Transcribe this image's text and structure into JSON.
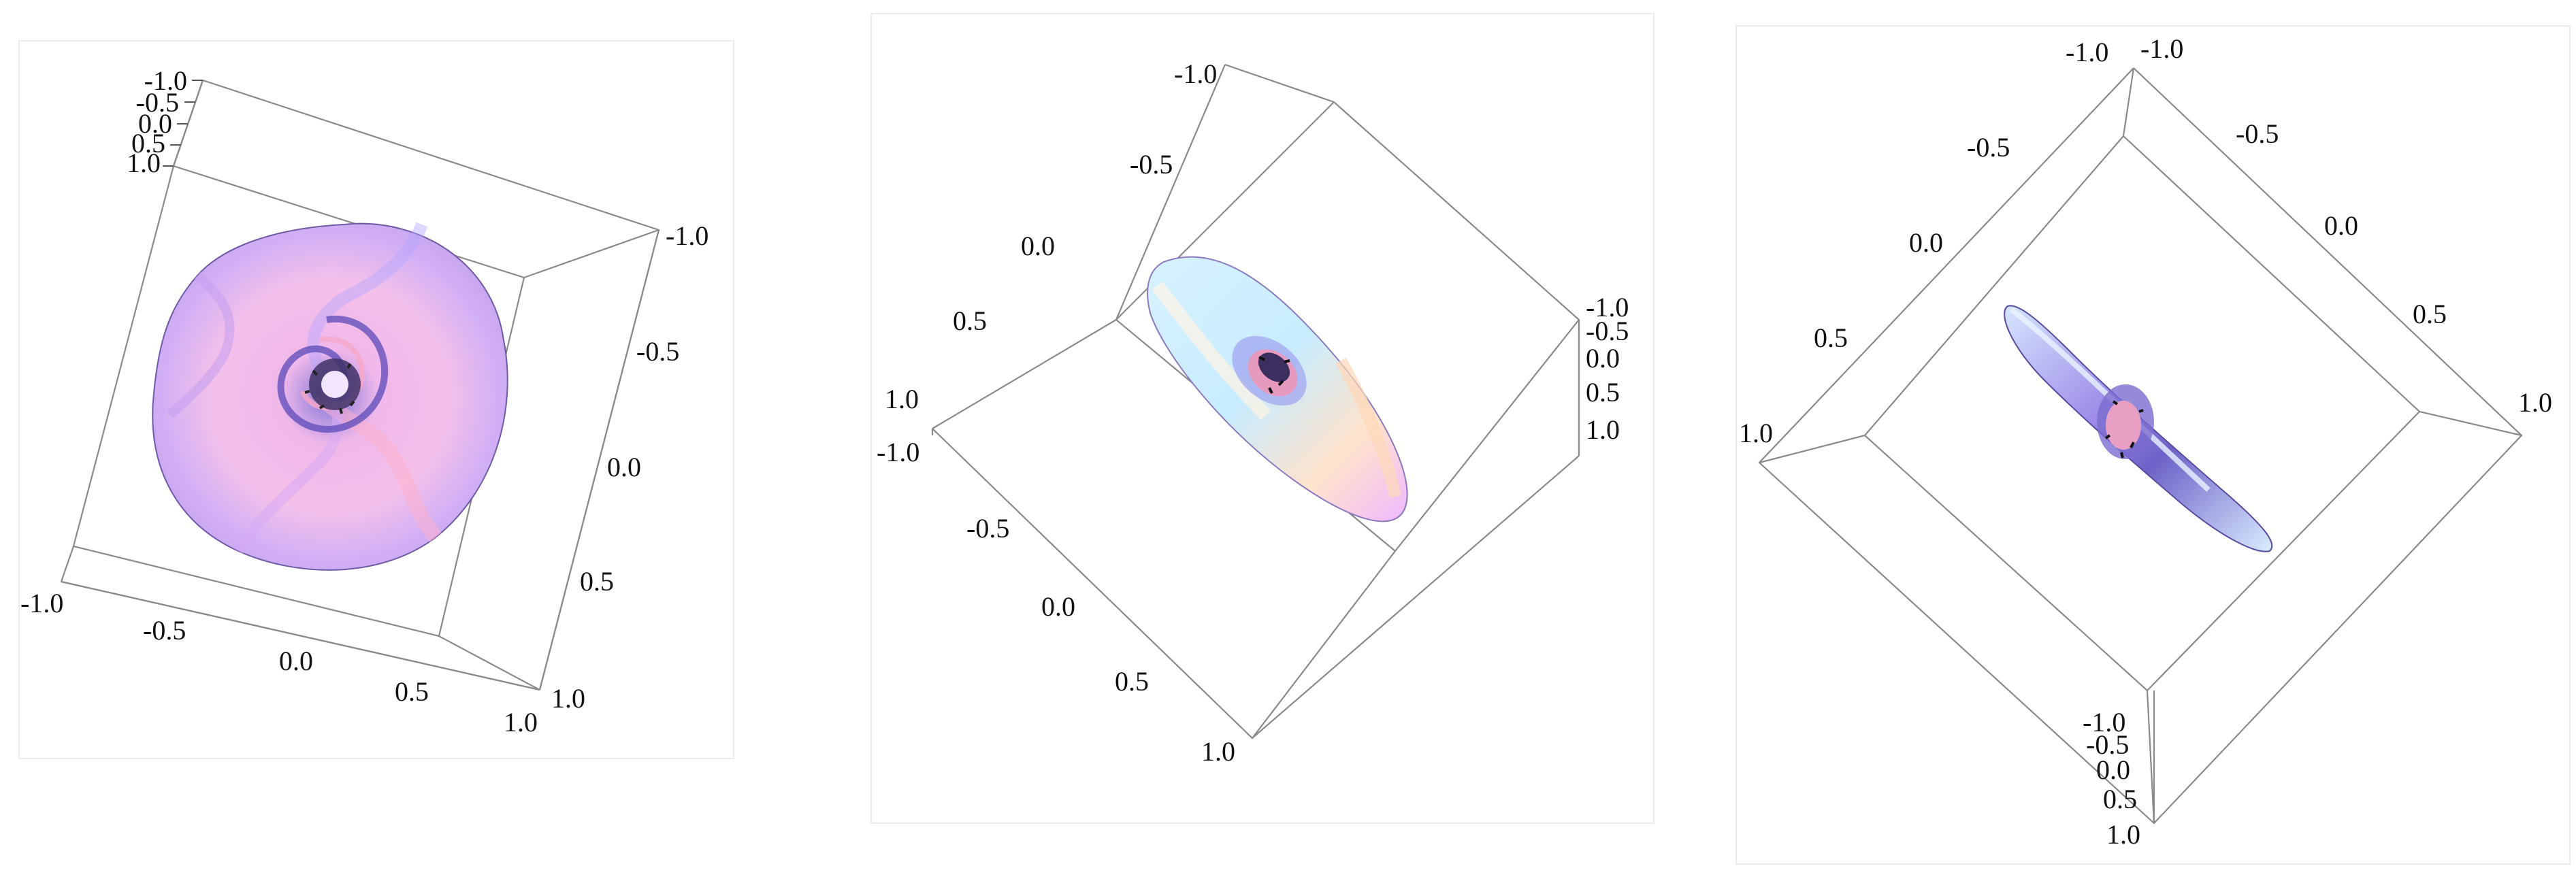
{
  "panels": [
    {
      "id": "top-view",
      "axes": [
        {
          "ticks": [
            "-1.0",
            "-0.5",
            "0.0",
            "0.5",
            "1.0"
          ]
        },
        {
          "ticks": [
            "-1.0",
            "-0.5",
            "0.0",
            "0.5",
            "1.0"
          ]
        },
        {
          "ticks": [
            "-1.0",
            "-0.5",
            "0.0",
            "0.5",
            "1.0"
          ]
        }
      ],
      "surface_colors": [
        "#f7c3e6",
        "#e9b1f2",
        "#c9b6ff",
        "#ffb3cf"
      ]
    },
    {
      "id": "oblique-view",
      "axes": [
        {
          "ticks": [
            "-1.0",
            "-0.5",
            "0.0",
            "0.5",
            "1.0"
          ]
        },
        {
          "ticks": [
            "-1.0",
            "-0.5",
            "0.0",
            "0.5",
            "1.0"
          ]
        },
        {
          "ticks": [
            "-1.0",
            "-0.5",
            "0.0",
            "0.5",
            "1.0"
          ]
        }
      ],
      "surface_colors": [
        "#d9f3ff",
        "#bfe8ff",
        "#ffe6cc",
        "#f3b6ff"
      ]
    },
    {
      "id": "edge-view",
      "axes": [
        {
          "ticks": [
            "-1.0",
            "-0.5",
            "0.0",
            "0.5",
            "1.0"
          ]
        },
        {
          "ticks": [
            "-1.0",
            "-0.5",
            "0.0",
            "0.5",
            "1.0"
          ]
        },
        {
          "ticks": [
            "-1.0",
            "-0.5",
            "0.0",
            "0.5",
            "1.0"
          ]
        }
      ],
      "surface_colors": [
        "#cfe3ff",
        "#b9a6ff",
        "#7b6fd6",
        "#ffd0e8"
      ]
    }
  ]
}
